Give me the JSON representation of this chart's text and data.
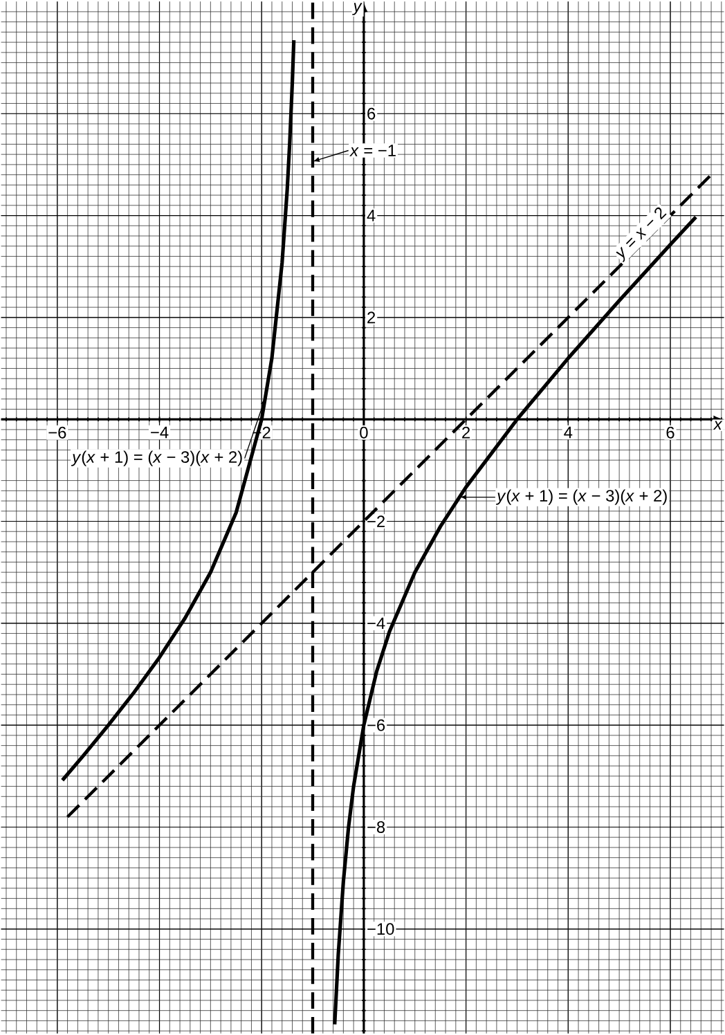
{
  "chart_data": {
    "type": "line",
    "xlabel": "*x*",
    "ylabel": "*y*",
    "xlim": [
      -7.1,
      7.05
    ],
    "ylim": [
      -12.05,
      8.2
    ],
    "xticks": [
      {
        "value": -6,
        "label": "−6"
      },
      {
        "value": -4,
        "label": "−4"
      },
      {
        "value": -2,
        "label": "−2"
      },
      0,
      2,
      4,
      6
    ],
    "yticks": [
      {
        "value": -10,
        "label": "−10"
      },
      {
        "value": -8,
        "label": "−8"
      },
      {
        "value": -6,
        "label": "−6"
      },
      {
        "value": -4,
        "label": "−4"
      },
      {
        "value": -2,
        "label": "−2"
      },
      2,
      4,
      6
    ],
    "grid": true,
    "marker": "none",
    "series": [
      {
        "name": "*y*(*x* + 1) = (*x* − 3)(*x* + 2)",
        "color": "#000000",
        "line_style": "solid",
        "x": [
          -5.9,
          -5.5,
          -5,
          -4.5,
          -4,
          -3.5,
          -3,
          -2.5,
          -2,
          -1.8,
          -1.6,
          -1.5,
          -1.45,
          -1.4,
          -1.37
        ],
        "values": [
          -7.08,
          -6.61,
          -6.0,
          -5.36,
          -4.67,
          -3.9,
          -3.0,
          -1.83,
          0,
          1.2,
          3.07,
          4.5,
          5.44,
          6.6,
          7.44
        ]
      },
      {
        "name": "*y*(*x* + 1) = (*x* − 3)(*x* + 2)",
        "color": "#000000",
        "line_style": "solid",
        "x": [
          -0.57,
          -0.5,
          -0.4,
          -0.3,
          -0.2,
          0,
          0.25,
          0.5,
          1,
          1.5,
          2,
          3,
          4,
          5,
          6,
          6.5
        ],
        "values": [
          -11.87,
          -10.5,
          -9.07,
          -8.01,
          -7.2,
          -6.0,
          -4.95,
          -4.17,
          -3.0,
          -2.1,
          -1.33,
          0,
          1.2,
          2.33,
          3.43,
          3.97
        ]
      },
      {
        "name": "*y* = *x* − 2",
        "color": "#000000",
        "line_style": "dashed",
        "x": [
          -5.8,
          6.8
        ],
        "values": [
          -7.8,
          4.8
        ]
      }
    ],
    "ref_lines": [
      {
        "axis": "x",
        "value": -1,
        "label": "*x* = −1",
        "line_style": "dashed",
        "color": "#000000"
      }
    ]
  }
}
